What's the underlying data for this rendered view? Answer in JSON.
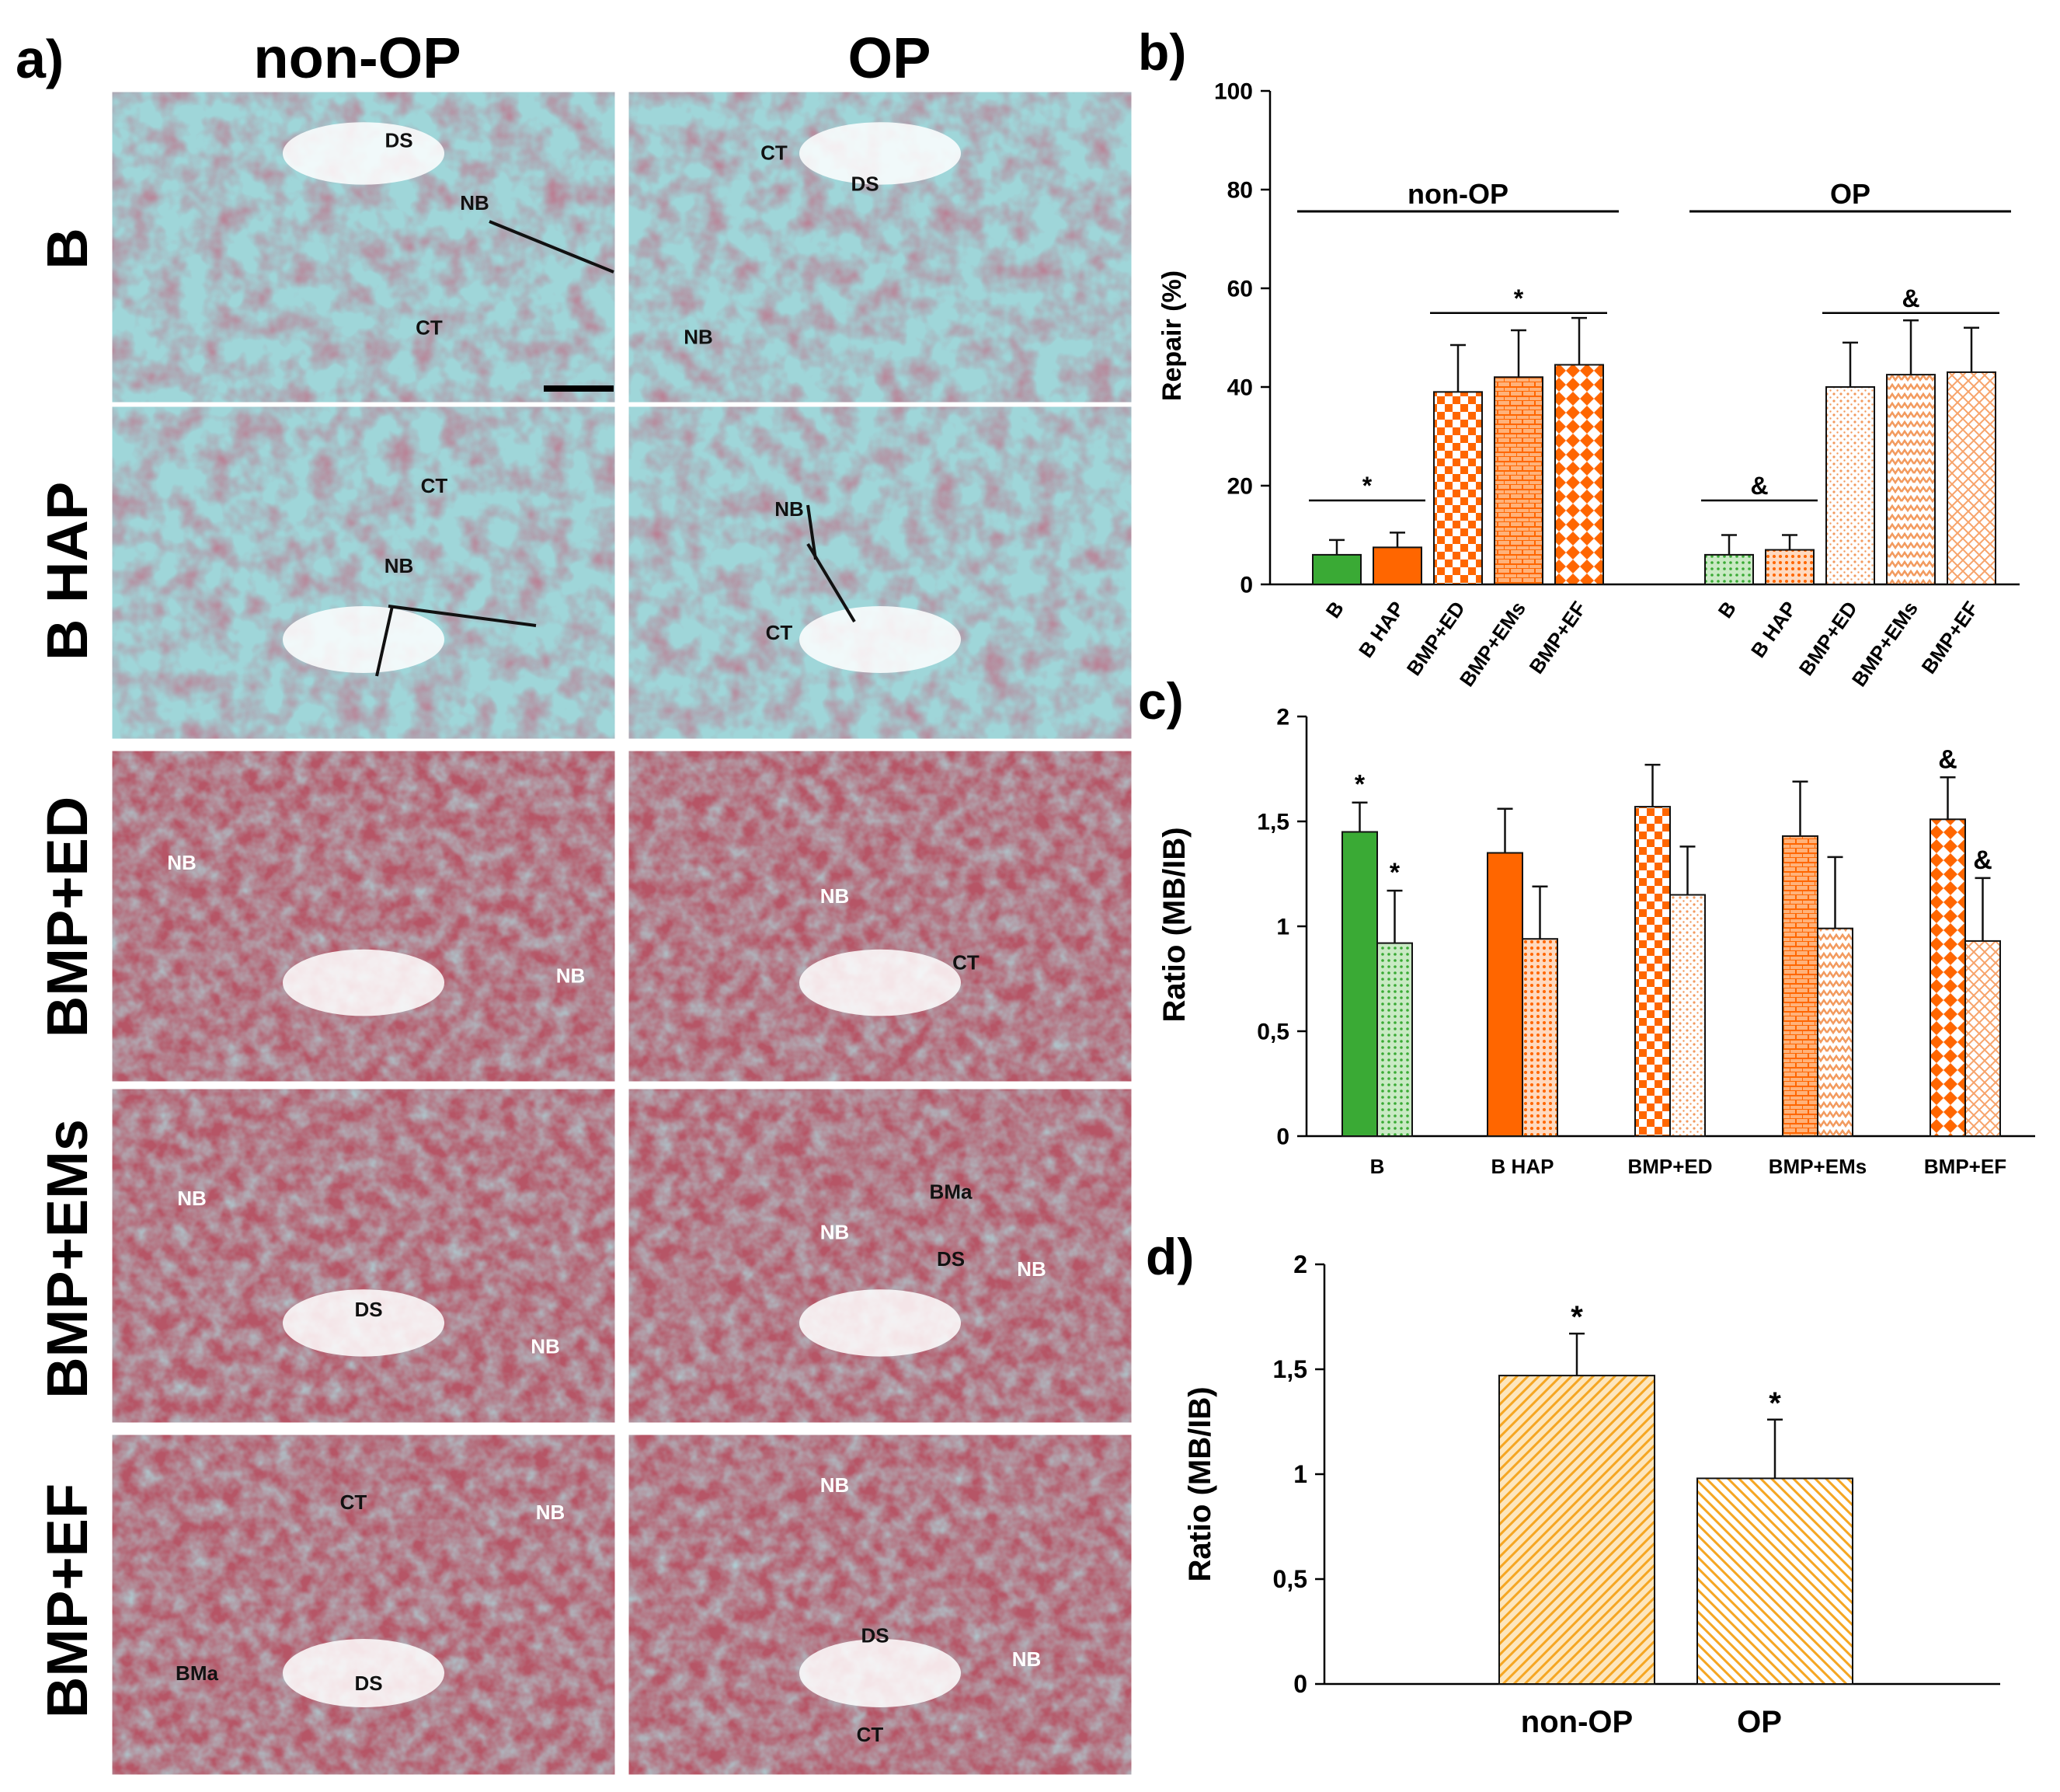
{
  "panel_labels": {
    "a": "a)",
    "b": "b)",
    "c": "c)",
    "d": "d)"
  },
  "histology": {
    "columns": [
      "non-OP",
      "OP"
    ],
    "rows": [
      "B",
      "B HAP",
      "BMP+ED",
      "BMP+EMs",
      "BMP+EF"
    ],
    "labels": {
      "r0c0": [
        "DS",
        "NB",
        "CT"
      ],
      "r0c1": [
        "CT",
        "DS",
        "NB"
      ],
      "r1c0": [
        "CT",
        "NB"
      ],
      "r1c1": [
        "NB",
        "CT"
      ],
      "r2c0": [
        "NB",
        "NB"
      ],
      "r2c1": [
        "NB",
        "CT"
      ],
      "r3c0": [
        "NB",
        "DS",
        "NB"
      ],
      "r3c1": [
        "BMa",
        "NB",
        "DS",
        "NB"
      ],
      "r4c0": [
        "CT",
        "NB",
        "BMa",
        "DS"
      ],
      "r4c1": [
        "NB",
        "DS",
        "NB",
        "CT"
      ]
    }
  },
  "colors": {
    "green": "#3aaa35",
    "orange": "#ff6600",
    "light_orange": "#f5a66a",
    "yellow_orange": "#f5a623",
    "tissue_cyan": "#6ec3c9",
    "tissue_red": "#8b1f2e",
    "tissue_purple": "#5a3a6e"
  },
  "chart_data": [
    {
      "panel": "b",
      "type": "bar",
      "ylabel": "Repair (%)",
      "ylim": [
        0,
        100
      ],
      "yticks": [
        "0",
        "20",
        "40",
        "60",
        "80",
        "100"
      ],
      "groups": [
        {
          "name": "non-OP",
          "sig_marks": [
            "*",
            "*"
          ]
        },
        {
          "name": "OP",
          "sig_marks": [
            "&",
            "&"
          ]
        }
      ],
      "categories": [
        "B",
        "B HAP",
        "BMP+ED",
        "BMP+EMs",
        "BMP+EF"
      ],
      "series": [
        {
          "name": "non-OP",
          "values": [
            6,
            7.5,
            39,
            42,
            44.5
          ],
          "errors": [
            3,
            3,
            9.5,
            9.5,
            9.5
          ]
        },
        {
          "name": "OP",
          "values": [
            6,
            7,
            40,
            42.5,
            43
          ],
          "errors": [
            4,
            3,
            9,
            11,
            9
          ]
        }
      ]
    },
    {
      "panel": "c",
      "type": "bar",
      "ylabel": "Ratio (MB/IB)",
      "ylim": [
        0,
        2
      ],
      "yticks": [
        "0",
        "0,5",
        "1",
        "1,5",
        "2"
      ],
      "categories": [
        "B",
        "B HAP",
        "BMP+ED",
        "BMP+EMs",
        "BMP+EF"
      ],
      "series": [
        {
          "name": "non-OP",
          "values": [
            1.45,
            1.35,
            1.57,
            1.43,
            1.51
          ],
          "errors": [
            0.14,
            0.21,
            0.2,
            0.26,
            0.2
          ],
          "marks": [
            "*",
            "",
            "",
            "",
            "&"
          ]
        },
        {
          "name": "OP",
          "values": [
            0.92,
            0.94,
            1.15,
            0.99,
            0.93
          ],
          "errors": [
            0.25,
            0.25,
            0.23,
            0.34,
            0.3
          ],
          "marks": [
            "*",
            "",
            "",
            "",
            "&"
          ]
        }
      ]
    },
    {
      "panel": "d",
      "type": "bar",
      "ylabel": "Ratio (MB/IB)",
      "ylim": [
        0,
        2
      ],
      "yticks": [
        "0",
        "0,5",
        "1",
        "1,5",
        "2"
      ],
      "categories": [
        "non-OP",
        "OP"
      ],
      "values": [
        1.47,
        0.98
      ],
      "errors": [
        0.2,
        0.28
      ],
      "marks": [
        "*",
        "*"
      ]
    }
  ]
}
